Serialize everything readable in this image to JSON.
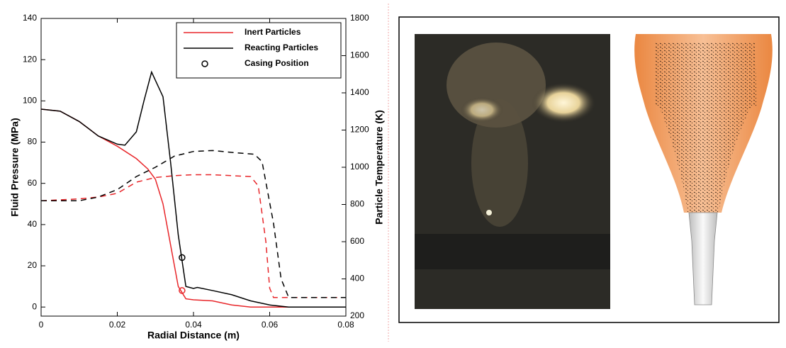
{
  "chart_data": {
    "type": "line",
    "xlabel": "Radial Distance (m)",
    "ylabel": "Fluid Pressure (MPa)",
    "y2label": "Particle Temperature (K)",
    "xlim": [
      0,
      0.08
    ],
    "xticks": [
      0,
      0.02,
      0.04,
      0.06,
      0.08
    ],
    "ylim": [
      -4.4,
      140
    ],
    "yticks": [
      0,
      20,
      40,
      60,
      80,
      100,
      120,
      140
    ],
    "y2lim": [
      200,
      1800
    ],
    "y2ticks": [
      200,
      400,
      600,
      800,
      1000,
      1200,
      1400,
      1600,
      1800
    ],
    "grid": false,
    "legend": "upper right",
    "series": [
      {
        "name": "Inert Particles",
        "color": "#e8262a",
        "dash": false,
        "x": [
          0,
          0.005,
          0.01,
          0.015,
          0.02,
          0.025,
          0.028,
          0.03,
          0.032,
          0.034,
          0.036,
          0.038,
          0.04,
          0.045,
          0.05,
          0.055,
          0.08
        ],
        "values": [
          96,
          95,
          90,
          83,
          78,
          72,
          67,
          62,
          50,
          30,
          10,
          4,
          3.5,
          3,
          1,
          0,
          0
        ]
      },
      {
        "name": "Reacting Particles",
        "color": "#000000",
        "dash": false,
        "x": [
          0,
          0.005,
          0.01,
          0.015,
          0.02,
          0.022,
          0.025,
          0.027,
          0.029,
          0.03,
          0.032,
          0.034,
          0.036,
          0.038,
          0.04,
          0.041,
          0.045,
          0.05,
          0.055,
          0.06,
          0.065,
          0.08
        ],
        "values": [
          96,
          95,
          90,
          83,
          79,
          78.5,
          85,
          100,
          114,
          110,
          102,
          70,
          35,
          10,
          9,
          9.5,
          8,
          6,
          3,
          1,
          0,
          0
        ]
      },
      {
        "color": "#e8262a",
        "dash": true,
        "axis": "y2",
        "x": [
          0,
          0.01,
          0.015,
          0.02,
          0.025,
          0.03,
          0.035,
          0.04,
          0.045,
          0.05,
          0.055,
          0.057,
          0.059,
          0.06,
          0.061,
          0.08
        ],
        "values": [
          820,
          830,
          840,
          860,
          920,
          945,
          955,
          960,
          960,
          955,
          950,
          900,
          600,
          350,
          300,
          300
        ]
      },
      {
        "color": "#000000",
        "dash": true,
        "axis": "y2",
        "x": [
          0,
          0.01,
          0.015,
          0.02,
          0.025,
          0.03,
          0.035,
          0.04,
          0.045,
          0.05,
          0.056,
          0.058,
          0.061,
          0.063,
          0.065,
          0.08
        ],
        "values": [
          820,
          820,
          840,
          880,
          950,
          1000,
          1060,
          1085,
          1090,
          1080,
          1070,
          1030,
          700,
          400,
          300,
          300
        ]
      },
      {
        "name": "Casing Position",
        "color": "#000000",
        "marker": "circle",
        "x": [
          0.037,
          0.037
        ],
        "values": [
          24,
          8
        ],
        "point_colors": [
          "#000000",
          "#e8262a"
        ]
      }
    ]
  }
}
